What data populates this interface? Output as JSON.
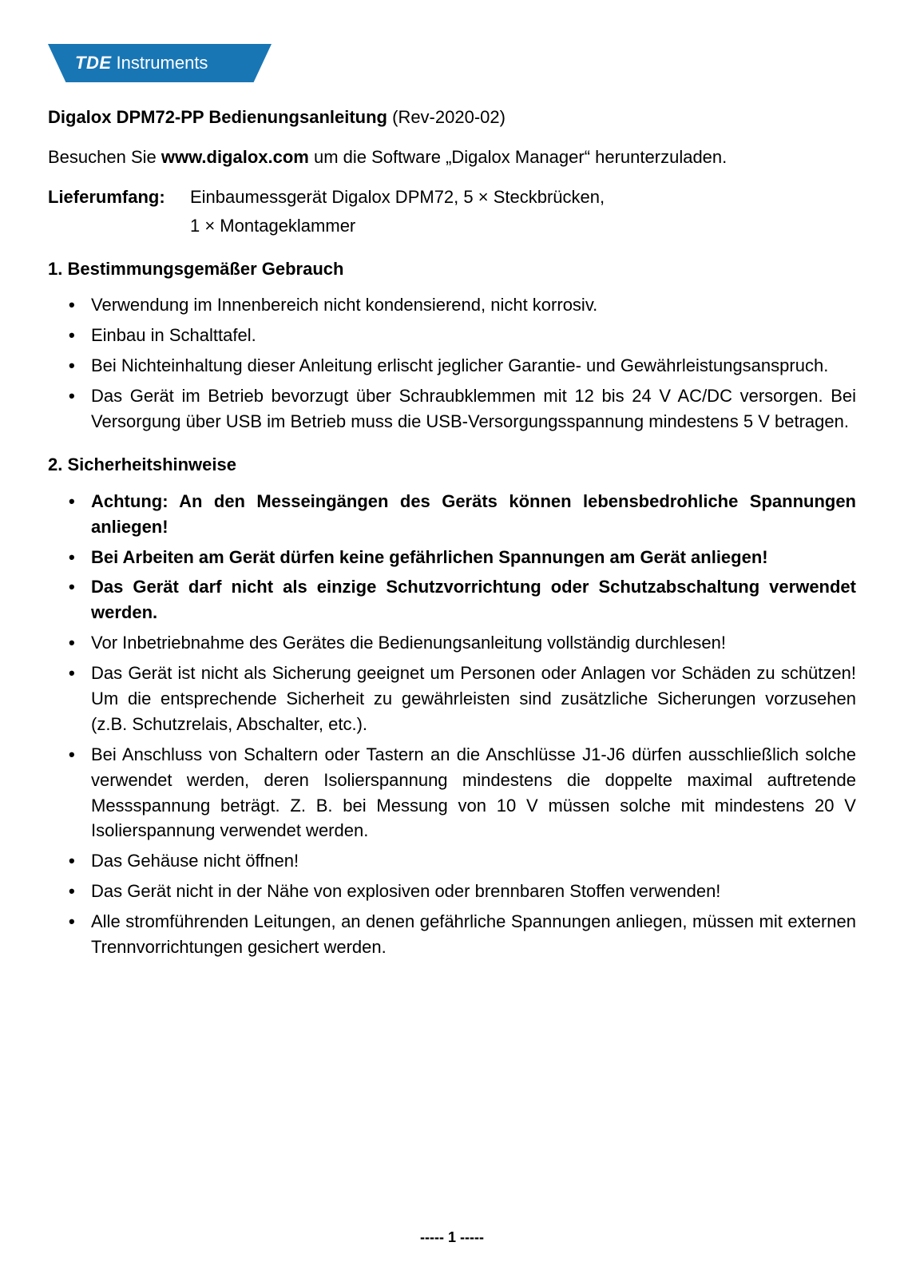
{
  "logo": {
    "brand_bold": "TDE",
    "brand_light": "Instruments"
  },
  "title": {
    "bold": "Digalox DPM72-PP Bedienungsanleitung",
    "rev": " (Rev-2020-02)"
  },
  "intro": {
    "pre": "Besuchen Sie ",
    "link": "www.digalox.com",
    "post": " um die Software „Digalox Manager“ herunterzuladen."
  },
  "liefer": {
    "label": "Lieferumfang",
    "line1": "Einbaumessgerät Digalox DPM72, 5 × Steckbrücken,",
    "line2": "1 × Montageklammer"
  },
  "section1": {
    "head": "1. Bestimmungsgemäßer Gebrauch",
    "items": [
      "Verwendung im Innenbereich nicht kondensierend, nicht korrosiv.",
      "Einbau in Schalttafel.",
      "Bei Nichteinhaltung dieser Anleitung erlischt jeglicher Garantie- und Gewährleistungsanspruch.",
      "Das Gerät im Betrieb bevorzugt über Schraubklemmen mit 12 bis 24 V AC/DC versorgen. Bei Versorgung über USB im Betrieb muss die USB-Versorgungsspannung mindestens 5 V betragen."
    ]
  },
  "section2": {
    "head": "2. Sicherheitshinweise",
    "items": [
      {
        "text": "Achtung: An den Messeingängen des Geräts können lebensbedrohliche Spannungen anliegen!",
        "bold": true
      },
      {
        "text": "Bei Arbeiten am Gerät dürfen keine gefährlichen Spannungen am Gerät anliegen!",
        "bold": true
      },
      {
        "text": "Das Gerät darf nicht als einzige Schutzvorrichtung oder Schutzabschaltung verwendet werden.",
        "bold": true
      },
      {
        "text": "Vor Inbetriebnahme des Gerätes die Bedienungsanleitung vollständig durchlesen!",
        "bold": false
      },
      {
        "text": "Das Gerät ist nicht als Sicherung geeignet um Personen oder Anlagen vor Schäden zu schützen! Um die entsprechende Sicherheit zu gewährleisten sind zusätzliche Sicherungen vorzusehen (z.B. Schutzrelais, Abschalter, etc.).",
        "bold": false
      },
      {
        "text": "Bei Anschluss von Schaltern oder Tastern an die Anschlüsse J1-J6 dürfen ausschließlich solche verwendet werden, deren Isolierspannung mindestens die doppelte maximal auftretende Messspannung beträgt. Z. B. bei Messung von 10 V müssen solche mit mindestens 20 V Isolierspannung verwendet werden.",
        "bold": false
      },
      {
        "text": "Das Gehäuse nicht öffnen!",
        "bold": false
      },
      {
        "text": "Das Gerät nicht in der Nähe von explosiven oder brennbaren Stoffen verwenden!",
        "bold": false
      },
      {
        "text": "Alle stromführenden Leitungen, an denen gefährliche Spannungen anliegen, müssen mit externen Trennvorrichtungen gesichert werden.",
        "bold": false
      }
    ]
  },
  "footer": "----- 1 -----",
  "colors": {
    "brand": "#1976b5",
    "text": "#000000",
    "bg": "#ffffff"
  }
}
